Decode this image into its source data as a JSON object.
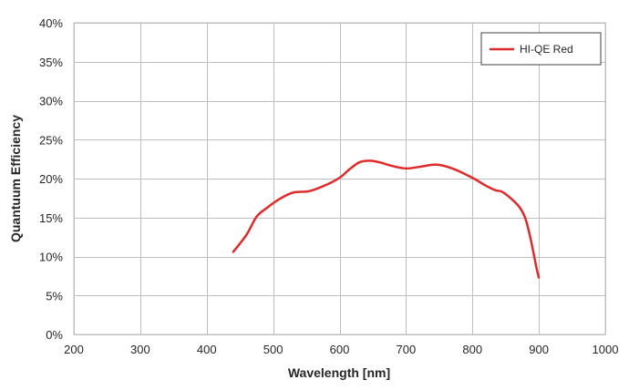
{
  "chart_data": {
    "type": "line",
    "title": "",
    "xlabel": "Wavelength [nm]",
    "ylabel": "Quantuum Efficiency",
    "xlim": [
      200,
      1000
    ],
    "ylim": [
      0,
      40
    ],
    "x_ticks": [
      200,
      300,
      400,
      500,
      600,
      700,
      800,
      900,
      1000
    ],
    "y_ticks": [
      0,
      5,
      10,
      15,
      20,
      25,
      30,
      35,
      40
    ],
    "y_tick_labels": [
      "0%",
      "5%",
      "10%",
      "15%",
      "20%",
      "25%",
      "30%",
      "35%",
      "40%"
    ],
    "grid": true,
    "legend": "top-right",
    "series": [
      {
        "name": "HI-QE Red",
        "color": "#e02a2a",
        "x": [
          440,
          460,
          475,
          490,
          510,
          530,
          555,
          580,
          600,
          615,
          630,
          645,
          660,
          680,
          700,
          720,
          745,
          770,
          800,
          820,
          835,
          845,
          860,
          872,
          880,
          887,
          893,
          897,
          900
        ],
        "y": [
          10.6,
          12.8,
          15.1,
          16.2,
          17.4,
          18.2,
          18.4,
          19.2,
          20.1,
          21.2,
          22.1,
          22.3,
          22.1,
          21.6,
          21.3,
          21.5,
          21.8,
          21.3,
          20.1,
          19.1,
          18.5,
          18.3,
          17.3,
          16.2,
          14.8,
          12.5,
          10.0,
          8.3,
          7.3
        ]
      }
    ]
  }
}
